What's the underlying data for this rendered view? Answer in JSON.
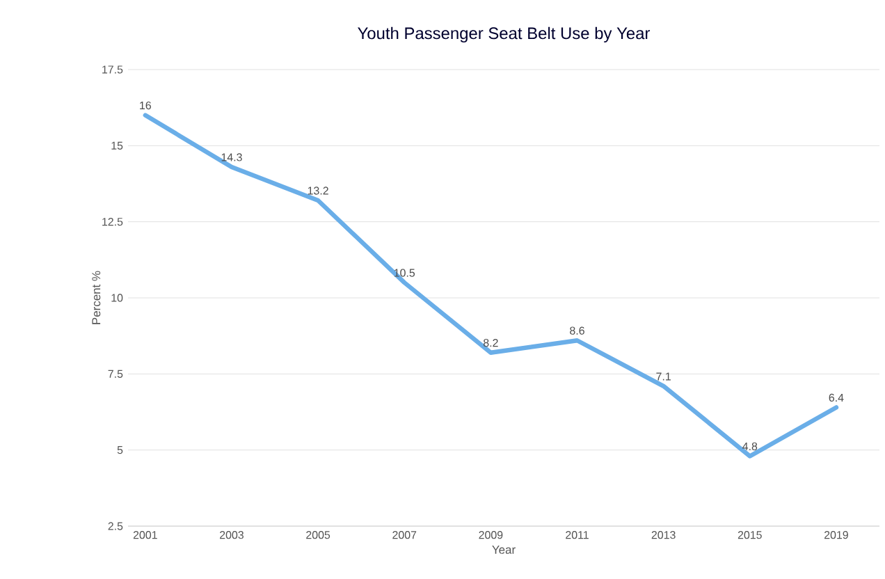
{
  "chart_data": {
    "type": "line",
    "title": "Youth Passenger Seat Belt Use by Year",
    "xlabel": "Year",
    "ylabel": "Percent %",
    "categories": [
      "2001",
      "2003",
      "2005",
      "2007",
      "2009",
      "2011",
      "2013",
      "2015",
      "2019"
    ],
    "values": [
      16,
      14.3,
      13.2,
      10.5,
      8.2,
      8.6,
      7.1,
      4.8,
      6.4
    ],
    "color": "#6aaee8",
    "ylim": [
      2.5,
      17.5
    ],
    "yticks": [
      2.5,
      5,
      7.5,
      10,
      12.5,
      15,
      17.5
    ],
    "grid": "y",
    "data_labels": true,
    "marker": "none",
    "line_style": "solid"
  }
}
